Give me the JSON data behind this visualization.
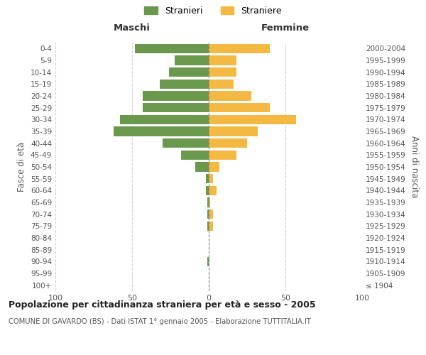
{
  "age_groups": [
    "100+",
    "95-99",
    "90-94",
    "85-89",
    "80-84",
    "75-79",
    "70-74",
    "65-69",
    "60-64",
    "55-59",
    "50-54",
    "45-49",
    "40-44",
    "35-39",
    "30-34",
    "25-29",
    "20-24",
    "15-19",
    "10-14",
    "5-9",
    "0-4"
  ],
  "birth_years": [
    "≤ 1904",
    "1905-1909",
    "1910-1914",
    "1915-1919",
    "1920-1924",
    "1925-1929",
    "1930-1934",
    "1935-1939",
    "1940-1944",
    "1945-1949",
    "1950-1954",
    "1955-1959",
    "1960-1964",
    "1965-1969",
    "1970-1974",
    "1975-1979",
    "1980-1984",
    "1985-1989",
    "1990-1994",
    "1995-1999",
    "2000-2004"
  ],
  "maschi": [
    0,
    0,
    1,
    0,
    0,
    1,
    1,
    1,
    2,
    2,
    9,
    18,
    30,
    62,
    58,
    43,
    43,
    32,
    26,
    22,
    48
  ],
  "femmine": [
    0,
    0,
    0,
    0,
    0,
    3,
    3,
    1,
    5,
    3,
    7,
    18,
    25,
    32,
    57,
    40,
    28,
    16,
    18,
    18,
    40
  ],
  "maschi_color": "#6a994e",
  "femmine_color": "#f4b942",
  "background_color": "#ffffff",
  "grid_color": "#cccccc",
  "title": "Popolazione per cittadinanza straniera per età e sesso - 2005",
  "subtitle": "COMUNE DI GAVARDO (BS) - Dati ISTAT 1° gennaio 2005 - Elaborazione TUTTITALIA.IT",
  "left_label": "Maschi",
  "right_label": "Femmine",
  "ylabel_left": "Fasce di età",
  "ylabel_right": "Anni di nascita",
  "legend_stranieri": "Stranieri",
  "legend_straniere": "Straniere",
  "xlim": 100,
  "bar_height": 0.8
}
